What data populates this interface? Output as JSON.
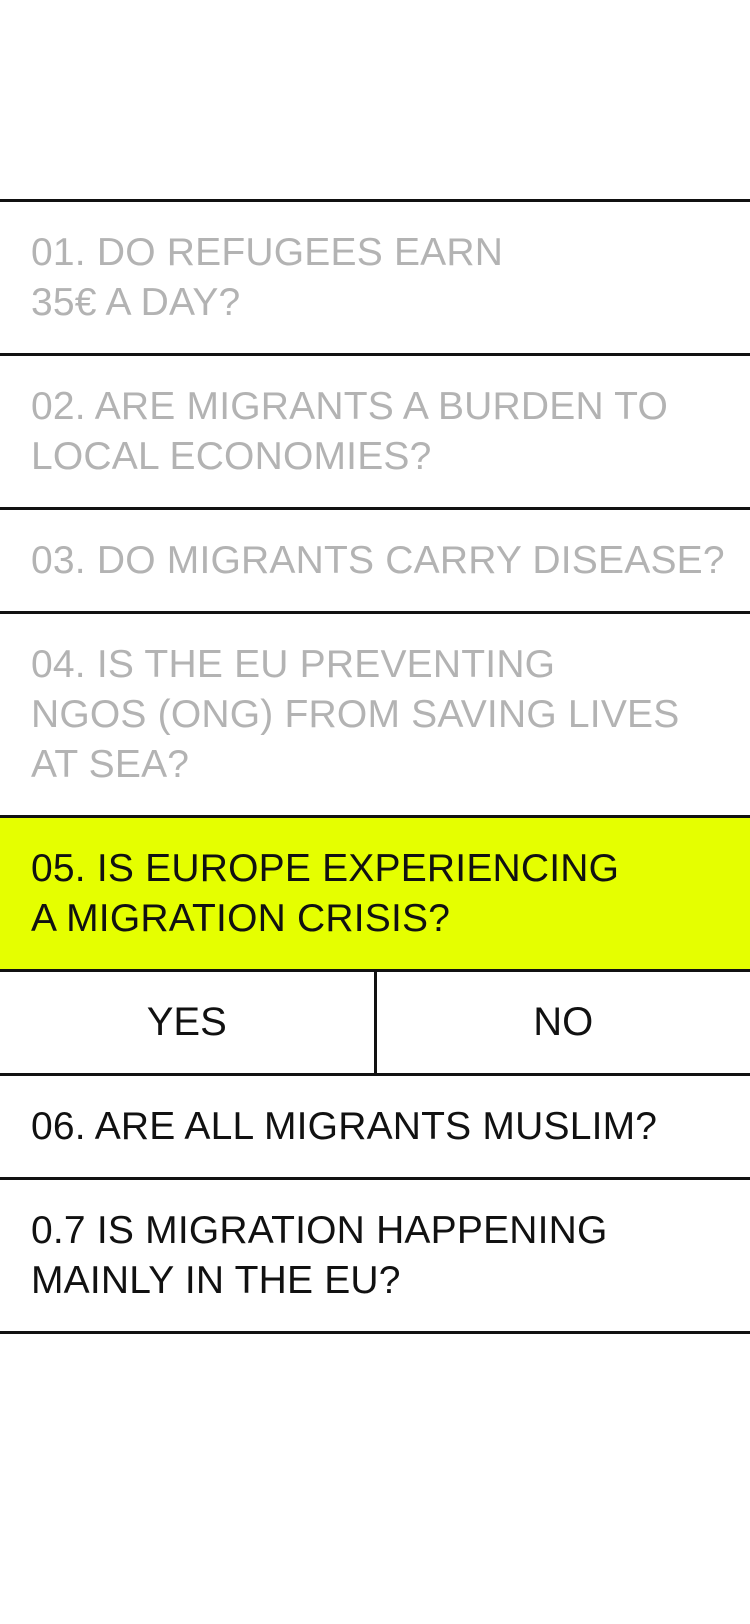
{
  "questions": [
    {
      "number": "01.",
      "text": "DO REFUGEES EARN 35€ A DAY?",
      "line1": "01. DO REFUGEES EARN",
      "line2": "35€ A DAY?",
      "state": "answered"
    },
    {
      "number": "02.",
      "text": "ARE MIGRANTS A BURDEN TO LOCAL ECONOMIES?",
      "line1": "02. ARE MIGRANTS A BURDEN TO",
      "line2": "LOCAL ECONOMIES?",
      "state": "answered"
    },
    {
      "number": "03.",
      "text": "DO MIGRANTS CARRY DISEASE?",
      "line1": "03. DO MIGRANTS CARRY DISEASE?",
      "state": "answered"
    },
    {
      "number": "04.",
      "text": "IS THE EU PREVENTING NGOS (ONG) FROM SAVING LIVES AT SEA?",
      "line1": "04. IS THE EU PREVENTING",
      "line2": "NGOS (ONG) FROM SAVING LIVES",
      "line3": "AT SEA?",
      "state": "answered"
    },
    {
      "number": "05.",
      "text": "IS EUROPE EXPERIENCING A MIGRATION CRISIS?",
      "line1": "05. IS EUROPE EXPERIENCING",
      "line2": "A MIGRATION CRISIS?",
      "state": "active"
    },
    {
      "number": "06.",
      "text": "ARE ALL MIGRANTS MUSLIM?",
      "line1": "06. ARE ALL MIGRANTS MUSLIM?",
      "state": "pending"
    },
    {
      "number": "0.7",
      "text": "IS MIGRATION HAPPENING MAINLY IN THE EU?",
      "line1": "0.7 IS MIGRATION HAPPENING",
      "line2": "MAINLY IN THE EU?",
      "state": "pending"
    }
  ],
  "answers": {
    "yes_label": "YES",
    "no_label": "NO"
  },
  "colors": {
    "active_background": "#e5ff00",
    "answered_text": "#b3b3b3",
    "text": "#111111",
    "divider": "#111111"
  }
}
